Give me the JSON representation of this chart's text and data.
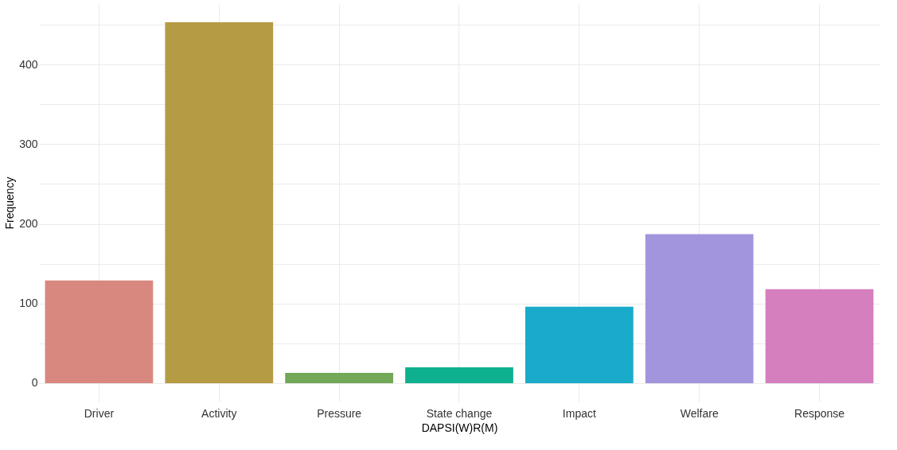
{
  "chart_data": {
    "type": "bar",
    "xlabel": "DAPSI(W)R(M)",
    "ylabel": "Frequency",
    "categories": [
      "Driver",
      "Activity",
      "Pressure",
      "State change",
      "Impact",
      "Welfare",
      "Response"
    ],
    "values": [
      129,
      453,
      13,
      20,
      96,
      187,
      118
    ],
    "colors": [
      "#d98880",
      "#b59b43",
      "#72a857",
      "#0fb08f",
      "#1aabca",
      "#a394de",
      "#d57fbf"
    ],
    "ylim": [
      -23,
      476
    ],
    "yticks": [
      0,
      {
        "value": 50,
        "label": null
      },
      100,
      {
        "value": 150,
        "label": null
      },
      200,
      {
        "value": 250,
        "label": null
      },
      300,
      {
        "value": 350,
        "label": null
      },
      400,
      {
        "value": 450,
        "label": null
      }
    ],
    "grid": true
  }
}
